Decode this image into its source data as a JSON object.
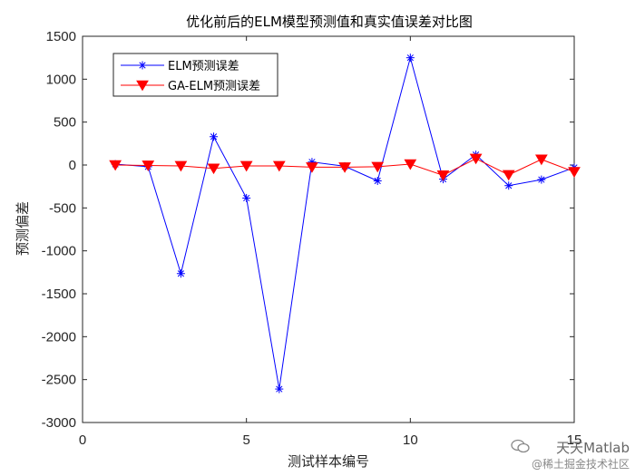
{
  "chart_data": {
    "type": "line",
    "title": "优化前后的ELM模型预测值和真实值误差对比图",
    "xlabel": "测试样本编号",
    "ylabel": "预测偏差",
    "xlim": [
      0,
      15
    ],
    "ylim": [
      -3000,
      1500
    ],
    "xticks": [
      "0",
      "5",
      "10",
      "15"
    ],
    "yticks": [
      "1500",
      "1000",
      "500",
      "0",
      "-500",
      "-1000",
      "-1500",
      "-2000",
      "-2500",
      "-3000"
    ],
    "x": [
      1,
      2,
      3,
      4,
      5,
      6,
      7,
      8,
      9,
      10,
      11,
      12,
      13,
      14,
      15
    ],
    "legend_position": "top-left",
    "grid": false,
    "series": [
      {
        "name": "ELM预测误差",
        "color": "#0000ff",
        "marker": "asterisk",
        "values": [
          10,
          -20,
          -1265,
          330,
          -385,
          -2610,
          35,
          -15,
          -185,
          1250,
          -165,
          120,
          -240,
          -170,
          -30
        ]
      },
      {
        "name": "GA-ELM预测误差",
        "color": "#ff0000",
        "marker": "triangle-down",
        "values": [
          0,
          -5,
          -10,
          -40,
          -10,
          -10,
          -25,
          -25,
          -20,
          10,
          -120,
          75,
          -115,
          65,
          -80
        ]
      }
    ]
  },
  "watermark": {
    "line1": "天天Matlab",
    "line2": "@稀土掘金技术社区"
  }
}
